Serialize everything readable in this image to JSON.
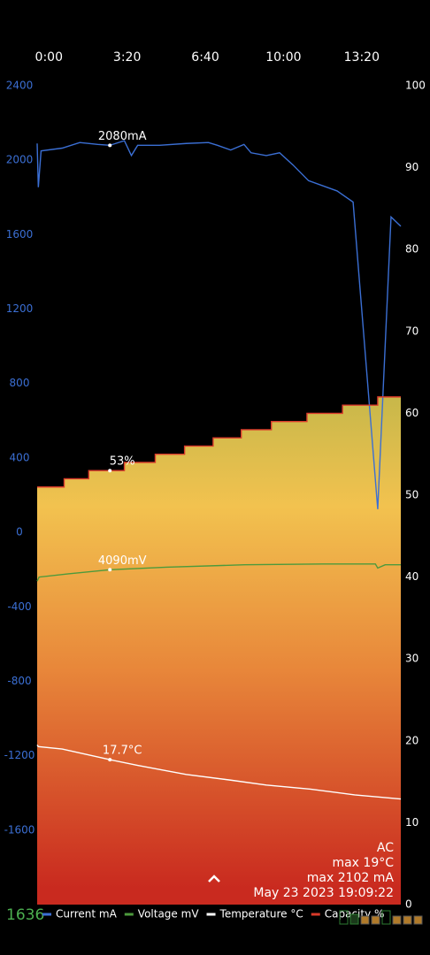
{
  "chart_data": {
    "type": "line",
    "xlim": [
      -30,
      900
    ],
    "xticks": [
      {
        "value": 0,
        "label": "0:00"
      },
      {
        "value": 200,
        "label": "3:20"
      },
      {
        "value": 400,
        "label": "6:40"
      },
      {
        "value": 600,
        "label": "10:00"
      },
      {
        "value": 800,
        "label": "13:20"
      }
    ],
    "ylim": [
      -2000,
      2400
    ],
    "yticks": [
      2400,
      2000,
      1600,
      1200,
      800,
      400,
      0,
      -400,
      -800,
      -1200,
      -1600
    ],
    "y2lim": [
      0,
      100
    ],
    "y2ticks": [
      100,
      90,
      80,
      70,
      60,
      50,
      40,
      30,
      20,
      10,
      0
    ],
    "y3lim": [
      0,
      10000
    ],
    "series": [
      {
        "name": "Current mA",
        "color": "#3b6fd4",
        "axis": "y",
        "x": [
          -30,
          -27,
          -20,
          34,
          79,
          125,
          156,
          193,
          211,
          227,
          283,
          351,
          408,
          431,
          465,
          499,
          517,
          556,
          590,
          624,
          664,
          737,
          778,
          841,
          875,
          900
        ],
        "values": [
          2090,
          1855,
          2050,
          2065,
          2095,
          2085,
          2080,
          2105,
          2025,
          2080,
          2080,
          2090,
          2095,
          2080,
          2055,
          2085,
          2040,
          2025,
          2040,
          1975,
          1890,
          1835,
          1775,
          125,
          1695,
          1645
        ]
      },
      {
        "name": "Voltage mV",
        "color": "#4c9a3c",
        "axis": "y3",
        "x": [
          -30,
          -25,
          50,
          156,
          300,
          500,
          700,
          835,
          841,
          860,
          900
        ],
        "values": [
          3950,
          4000,
          4040,
          4090,
          4120,
          4150,
          4160,
          4160,
          4110,
          4150,
          4150
        ]
      },
      {
        "name": "Temperature °C",
        "color": "#ffffff",
        "axis": "y2",
        "x": [
          -30,
          -27,
          34,
          156,
          227,
          351,
          465,
          556,
          669,
          782,
          900
        ],
        "values": [
          19.5,
          19.3,
          19.0,
          17.7,
          17.0,
          15.9,
          15.2,
          14.6,
          14.1,
          13.4,
          12.9
        ]
      },
      {
        "name": "Capacity %",
        "color": "#d93a2a",
        "axis": "y2",
        "step": true,
        "fill": true,
        "x": [
          -30,
          39,
          102,
          193,
          272,
          347,
          420,
          492,
          569,
          660,
          751,
          841,
          900
        ],
        "values": [
          51,
          52,
          53,
          54,
          55,
          56,
          57,
          58,
          59,
          60,
          61,
          62,
          62
        ]
      }
    ],
    "annotations": [
      {
        "text": "2080mA",
        "series": 0,
        "x": 156,
        "value": 2080
      },
      {
        "text": "53%",
        "series": 3,
        "x": 156,
        "value": 53
      },
      {
        "text": "4090mV",
        "series": 1,
        "x": 156,
        "value": 4090
      },
      {
        "text": "17.7°C",
        "series": 2,
        "x": 156,
        "value": 17.7
      }
    ]
  },
  "status": {
    "source": "AC",
    "max_temp": "max 19°C",
    "max_current": "max 2102 mA",
    "timestamp": "May 23 2023 19:09:22"
  },
  "counter": "1636"
}
